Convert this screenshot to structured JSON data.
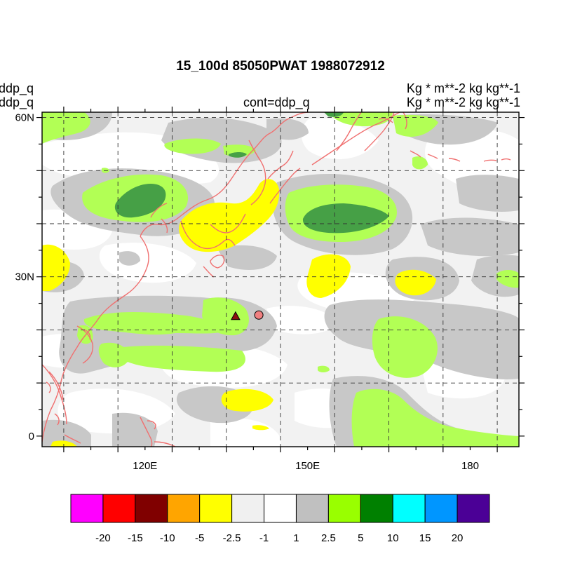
{
  "title": "15_100d 85050PWAT  1988072912",
  "left_labels": [
    "ddp_q",
    "ddp_q"
  ],
  "center_label": "cont=ddp_q",
  "right_labels": [
    "Kg  * m**-2 kg kg**-1",
    "Kg  * m**-2 kg kg**-1"
  ],
  "map": {
    "projection": "lat-lon",
    "lon_range": [
      101,
      189
    ],
    "lat_range": [
      -2,
      61
    ],
    "lat_ticks": [
      {
        "value": 0,
        "label": "0"
      },
      {
        "value": 30,
        "label": "30N"
      },
      {
        "value": 60,
        "label": "60N"
      }
    ],
    "lon_ticks": [
      {
        "value": 120,
        "label": "120E"
      },
      {
        "value": 150,
        "label": "150E"
      },
      {
        "value": 180,
        "label": "180"
      }
    ],
    "grid_lons": [
      105,
      115,
      125,
      135,
      145,
      155,
      165,
      175,
      185
    ],
    "grid_lats": [
      10,
      20,
      30,
      40,
      50,
      60
    ],
    "coastline_color": "#f07070",
    "markers": [
      {
        "type": "triangle",
        "lon": 136.7,
        "lat": 22.6,
        "color": "#8b1010"
      },
      {
        "type": "circle",
        "lon": 141,
        "lat": 22.8,
        "color": "#f08080"
      }
    ]
  },
  "colorbar": {
    "colors": [
      "#ff00ff",
      "#ff0000",
      "#800000",
      "#ffa500",
      "#ffff00",
      "#f0f0f0",
      "#ffffff",
      "#c0c0c0",
      "#99ff00",
      "#008000",
      "#00ffff",
      "#0096ff",
      "#4b0096"
    ],
    "labels": [
      "-20",
      "-15",
      "-10",
      "-5",
      "-2.5",
      "-1",
      "1",
      "2.5",
      "5",
      "10",
      "15",
      "20"
    ]
  }
}
